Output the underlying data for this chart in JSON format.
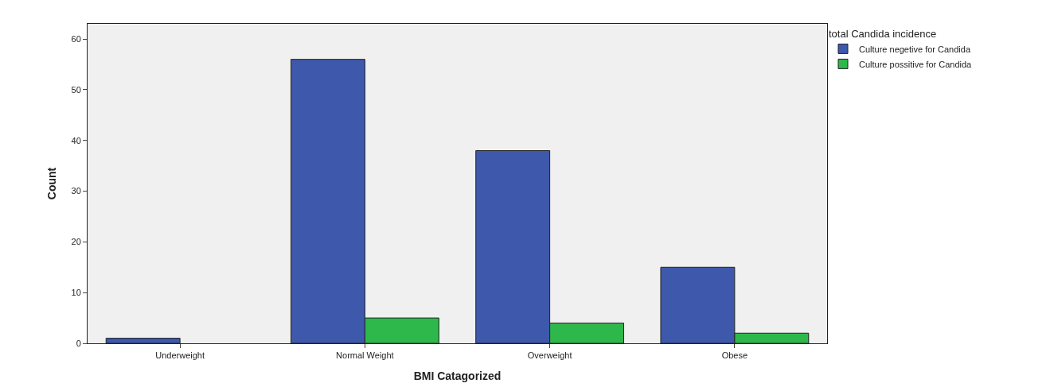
{
  "chart_data": {
    "type": "bar",
    "xlabel": "BMI Catagorized",
    "ylabel": "Count",
    "legend_title": "total Candida incidence",
    "categories": [
      "Underweight",
      "Normal Weight",
      "Overweight",
      "Obese"
    ],
    "series": [
      {
        "name": "Culture negetive for Candida",
        "color": "#3e58ac",
        "values": [
          1,
          56,
          38,
          15
        ]
      },
      {
        "name": "Culture possitive for Candida",
        "color": "#2eb84c",
        "values": [
          null,
          5,
          4,
          2
        ]
      }
    ],
    "ylim": [
      0,
      63
    ],
    "yticks": [
      0,
      10,
      20,
      30,
      40,
      50,
      60
    ],
    "grid": false,
    "legend": "top right"
  }
}
